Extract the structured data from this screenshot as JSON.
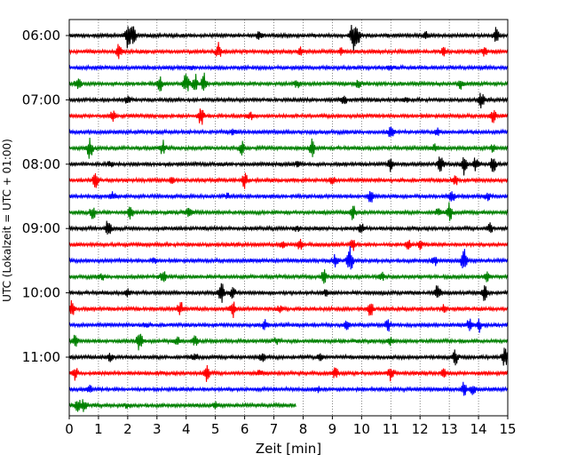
{
  "chart_data": {
    "type": "line",
    "xlabel": "Zeit  [min]",
    "ylabel": "UTC (Lokalzeit = UTC + 01:00)",
    "xlim": [
      0,
      15
    ],
    "x_ticks": [
      0,
      1,
      2,
      3,
      4,
      5,
      6,
      7,
      8,
      9,
      10,
      11,
      12,
      13,
      14,
      15
    ],
    "y_ticks": [
      "06:00",
      "07:00",
      "08:00",
      "09:00",
      "10:00",
      "11:00"
    ],
    "grid": "vertical dotted at each minute",
    "row_minutes": 15,
    "first_row": "06:00",
    "trace_count": 24,
    "last_trace_end_min": 7.75,
    "color_cycle": [
      "#000000",
      "#ff0000",
      "#0000ff",
      "#008000"
    ],
    "series": [
      {
        "start": "06:00",
        "bursts": [
          [
            2.0,
            16
          ],
          [
            2.2,
            10
          ],
          [
            9.7,
            16
          ],
          [
            9.85,
            12
          ],
          [
            14.6,
            8
          ],
          [
            6.5,
            4
          ],
          [
            12.2,
            4
          ]
        ]
      },
      {
        "start": "06:15",
        "bursts": [
          [
            1.7,
            8
          ],
          [
            5.1,
            10
          ],
          [
            7.9,
            5
          ],
          [
            9.3,
            5
          ],
          [
            12.8,
            4
          ],
          [
            14.2,
            4
          ]
        ]
      },
      {
        "start": "06:30",
        "bursts": [
          [
            4.2,
            3
          ],
          [
            11.0,
            3
          ]
        ]
      },
      {
        "start": "06:45",
        "bursts": [
          [
            0.3,
            8
          ],
          [
            3.1,
            9
          ],
          [
            4.0,
            12
          ],
          [
            4.3,
            11
          ],
          [
            4.6,
            11
          ],
          [
            7.8,
            5
          ],
          [
            9.9,
            5
          ],
          [
            13.4,
            5
          ]
        ]
      },
      {
        "start": "07:00",
        "bursts": [
          [
            2.0,
            4
          ],
          [
            9.4,
            4
          ],
          [
            14.1,
            8
          ],
          [
            11.5,
            3
          ]
        ]
      },
      {
        "start": "07:15",
        "bursts": [
          [
            1.5,
            5
          ],
          [
            4.5,
            12
          ],
          [
            14.5,
            8
          ],
          [
            6.2,
            4
          ]
        ]
      },
      {
        "start": "07:30",
        "bursts": [
          [
            11.0,
            7
          ],
          [
            12.6,
            4
          ],
          [
            5.6,
            3
          ]
        ]
      },
      {
        "start": "07:45",
        "bursts": [
          [
            0.7,
            12
          ],
          [
            3.2,
            8
          ],
          [
            5.9,
            8
          ],
          [
            8.3,
            10
          ],
          [
            12.5,
            5
          ],
          [
            14.5,
            4
          ]
        ]
      },
      {
        "start": "08:00",
        "bursts": [
          [
            1.4,
            4
          ],
          [
            11.0,
            7
          ],
          [
            12.7,
            10
          ],
          [
            13.5,
            12
          ],
          [
            13.9,
            8
          ],
          [
            14.5,
            9
          ],
          [
            7.8,
            3
          ]
        ]
      },
      {
        "start": "08:15",
        "bursts": [
          [
            0.9,
            8
          ],
          [
            6.0,
            10
          ],
          [
            9.0,
            4
          ],
          [
            13.2,
            5
          ],
          [
            3.5,
            3
          ]
        ]
      },
      {
        "start": "08:30",
        "bursts": [
          [
            1.5,
            4
          ],
          [
            10.3,
            7
          ],
          [
            13.1,
            6
          ],
          [
            14.3,
            5
          ],
          [
            5.4,
            3
          ]
        ]
      },
      {
        "start": "08:45",
        "bursts": [
          [
            0.8,
            8
          ],
          [
            2.1,
            7
          ],
          [
            4.1,
            6
          ],
          [
            9.7,
            8
          ],
          [
            13.0,
            12
          ],
          [
            12.6,
            4
          ]
        ]
      },
      {
        "start": "09:00",
        "bursts": [
          [
            1.35,
            12
          ],
          [
            10.0,
            6
          ],
          [
            14.4,
            6
          ],
          [
            7.8,
            3
          ]
        ]
      },
      {
        "start": "09:15",
        "bursts": [
          [
            7.3,
            6
          ],
          [
            7.9,
            5
          ],
          [
            9.7,
            6
          ],
          [
            11.6,
            5
          ],
          [
            12.0,
            5
          ]
        ]
      },
      {
        "start": "09:30",
        "bursts": [
          [
            9.1,
            7
          ],
          [
            9.6,
            16
          ],
          [
            12.5,
            5
          ],
          [
            13.5,
            13
          ],
          [
            2.9,
            3
          ]
        ]
      },
      {
        "start": "09:45",
        "bursts": [
          [
            3.2,
            8
          ],
          [
            8.7,
            8
          ],
          [
            10.7,
            4
          ],
          [
            14.3,
            5
          ],
          [
            1.1,
            3
          ]
        ]
      },
      {
        "start": "10:00",
        "bursts": [
          [
            2.0,
            4
          ],
          [
            5.2,
            12
          ],
          [
            5.6,
            6
          ],
          [
            8.8,
            4
          ],
          [
            12.6,
            10
          ],
          [
            14.2,
            10
          ]
        ]
      },
      {
        "start": "10:15",
        "bursts": [
          [
            0.1,
            10
          ],
          [
            3.8,
            9
          ],
          [
            5.6,
            10
          ],
          [
            10.3,
            10
          ],
          [
            12.8,
            4
          ],
          [
            7.2,
            3
          ]
        ]
      },
      {
        "start": "10:30",
        "bursts": [
          [
            6.7,
            6
          ],
          [
            9.5,
            5
          ],
          [
            10.9,
            7
          ],
          [
            13.7,
            8
          ],
          [
            14.0,
            8
          ],
          [
            2.6,
            3
          ]
        ]
      },
      {
        "start": "10:45",
        "bursts": [
          [
            0.2,
            7
          ],
          [
            2.4,
            11
          ],
          [
            3.7,
            5
          ],
          [
            4.3,
            5
          ],
          [
            11.0,
            4
          ],
          [
            7.1,
            3
          ]
        ]
      },
      {
        "start": "11:00",
        "bursts": [
          [
            1.4,
            4
          ],
          [
            4.3,
            5
          ],
          [
            6.6,
            5
          ],
          [
            8.6,
            4
          ],
          [
            13.2,
            8
          ],
          [
            14.9,
            10
          ]
        ]
      },
      {
        "start": "11:15",
        "bursts": [
          [
            0.2,
            7
          ],
          [
            4.7,
            10
          ],
          [
            9.1,
            6
          ],
          [
            11.0,
            9
          ],
          [
            6.5,
            3
          ],
          [
            12.8,
            4
          ]
        ]
      },
      {
        "start": "11:30",
        "bursts": [
          [
            0.7,
            4
          ],
          [
            8.5,
            3
          ],
          [
            13.5,
            8
          ],
          [
            13.8,
            6
          ]
        ]
      },
      {
        "start": "11:45",
        "bursts": [
          [
            0.3,
            6
          ],
          [
            0.5,
            7
          ],
          [
            2.0,
            3
          ],
          [
            5.0,
            3
          ]
        ]
      }
    ]
  }
}
